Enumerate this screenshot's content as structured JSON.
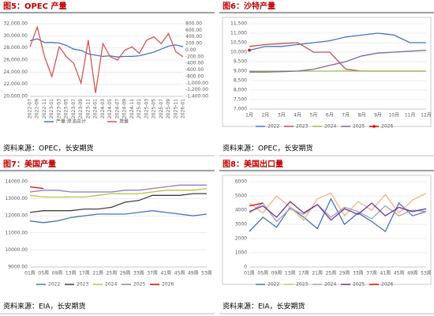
{
  "chart_data": [
    {
      "type": "line",
      "title": "图5：OPEC 产量",
      "source": "资料来源：OPEC，长安期货",
      "categories": [
        "2022-07",
        "2022-09",
        "2022-11",
        "2023-01",
        "2023-03",
        "2023-05",
        "2023-07",
        "2023-09",
        "2023-11",
        "2024-01",
        "2024-03",
        "2024-05",
        "2024-07",
        "2024-09",
        "2024-11",
        "2025-01",
        "2025-03",
        "2025-05",
        "2025-07",
        "2025-09",
        "2025-11",
        "2026-01"
      ],
      "ylim": [
        20000,
        32000
      ],
      "yticks": [
        {
          "value": 20000,
          "label": "20,000.00"
        },
        {
          "value": 22000,
          "label": "22,000.00"
        },
        {
          "value": 24000,
          "label": "24,000.00"
        },
        {
          "value": 26000,
          "label": "26,000.00"
        },
        {
          "value": 28000,
          "label": "28,000.00"
        },
        {
          "value": 30000,
          "label": "30,000.00"
        },
        {
          "value": 32000,
          "label": "32,000.00"
        }
      ],
      "y2lim": [
        -1400,
        800
      ],
      "y2ticks": [
        {
          "value": -1400,
          "label": "-1,400.00"
        },
        {
          "value": -1200,
          "label": "-1,200.00"
        },
        {
          "value": -1000,
          "label": "-1,000.00"
        },
        {
          "value": -800,
          "label": "-800.00"
        },
        {
          "value": -600,
          "label": "-600.00"
        },
        {
          "value": -400,
          "label": "-400.00"
        },
        {
          "value": -200,
          "label": "-200.00"
        },
        {
          "value": 0,
          "label": "0.00"
        },
        {
          "value": 200,
          "label": "200.00"
        },
        {
          "value": 400,
          "label": "400.00"
        },
        {
          "value": 600,
          "label": "600.00"
        },
        {
          "value": 800,
          "label": "800.00"
        }
      ],
      "series": [
        {
          "name": "产量:原油总计",
          "color": "#4472c4",
          "values": [
            29200,
            29500,
            28900,
            28900,
            28800,
            28400,
            27800,
            27600,
            27000,
            26800,
            26600,
            26700,
            26500,
            26600,
            26600,
            26700,
            27000,
            27300,
            27800,
            28300,
            28500,
            28200
          ]
        },
        {
          "name": "增量",
          "color": "#d9534f",
          "axis": "y2",
          "values": [
            100,
            700,
            -200,
            -800,
            100,
            -200,
            -400,
            -1000,
            300,
            -1300,
            200,
            -200,
            -300,
            0,
            100,
            -100,
            300,
            400,
            200,
            500,
            -50,
            -200
          ]
        }
      ]
    },
    {
      "type": "line",
      "title": "图6：沙特产量",
      "source": "资料来源：OPEC，长安期货",
      "categories": [
        "1月",
        "2月",
        "3月",
        "4月",
        "5月",
        "6月",
        "7月",
        "8月",
        "9月",
        "10月",
        "11月",
        "12月"
      ],
      "ylim": [
        7000,
        11500
      ],
      "yticks": [
        {
          "value": 7000,
          "label": "7,000"
        },
        {
          "value": 7500,
          "label": "7,500"
        },
        {
          "value": 8000,
          "label": "8,000"
        },
        {
          "value": 8500,
          "label": "8,500"
        },
        {
          "value": 9000,
          "label": "9,000"
        },
        {
          "value": 9500,
          "label": "9,500"
        },
        {
          "value": 10000,
          "label": "10,000"
        },
        {
          "value": 10500,
          "label": "10,500"
        },
        {
          "value": 11000,
          "label": "11,000"
        },
        {
          "value": 11500,
          "label": "11,500"
        }
      ],
      "frame": true,
      "series": [
        {
          "name": "2022",
          "color": "#4472c4",
          "values": [
            10100,
            10300,
            10300,
            10400,
            10500,
            10600,
            10800,
            10900,
            11000,
            10900,
            10500,
            10500
          ]
        },
        {
          "name": "2023",
          "color": "#c0504d",
          "values": [
            10300,
            10400,
            10450,
            10500,
            10000,
            10000,
            9100,
            9000,
            9000,
            9000,
            9000,
            9000
          ]
        },
        {
          "name": "2024",
          "color": "#9bbb59",
          "values": [
            9000,
            9000,
            9000,
            9000,
            9000,
            9000,
            9000,
            9000,
            9000,
            9000,
            9000,
            9000
          ]
        },
        {
          "name": "2025",
          "color": "#8064a2",
          "values": [
            8950,
            8950,
            8970,
            9000,
            9100,
            9300,
            9500,
            9800,
            9950,
            10000,
            10050,
            10100
          ]
        },
        {
          "name": "2026",
          "color": "#e00000",
          "marker": true,
          "values": [
            10100,
            null,
            null,
            null,
            null,
            null,
            null,
            null,
            null,
            null,
            null,
            null
          ]
        }
      ]
    },
    {
      "type": "line",
      "title": "图7：美国产量",
      "source": "资料来源：EIA，长安期货",
      "categories": [
        "01周",
        "05周",
        "09周",
        "13周",
        "17周",
        "21周",
        "25周",
        "29周",
        "33周",
        "37周",
        "41周",
        "45周",
        "49周",
        "53周"
      ],
      "ylim": [
        9000,
        14000
      ],
      "yticks": [
        {
          "value": 9000,
          "label": "9000.00"
        },
        {
          "value": 10000,
          "label": "10000.00"
        },
        {
          "value": 11000,
          "label": "11000.00"
        },
        {
          "value": 12000,
          "label": "12000.00"
        },
        {
          "value": 13000,
          "label": "13000.00"
        },
        {
          "value": 14000,
          "label": "14000.00"
        }
      ],
      "series": [
        {
          "name": "2022",
          "color": "#4472c4",
          "values": [
            11700,
            11600,
            11700,
            11900,
            12000,
            12100,
            12100,
            12100,
            12200,
            12300,
            12200,
            12100,
            12000,
            12100
          ]
        },
        {
          "name": "2023",
          "color": "#404040",
          "values": [
            12200,
            12300,
            12300,
            12300,
            12400,
            12400,
            12500,
            12800,
            12900,
            13200,
            13200,
            13200,
            13300,
            13300
          ]
        },
        {
          "name": "2024",
          "color": "#bfbf3f",
          "values": [
            13200,
            13100,
            13100,
            13100,
            13100,
            13200,
            13300,
            13300,
            13300,
            13400,
            13500,
            13500,
            13500,
            13600
          ]
        },
        {
          "name": "2025",
          "color": "#8e7cc3",
          "values": [
            13400,
            13500,
            13500,
            13400,
            13400,
            13400,
            13400,
            13500,
            13500,
            13600,
            13700,
            13800,
            13800,
            13800
          ]
        },
        {
          "name": "2026",
          "color": "#e00000",
          "values": [
            13700,
            13600,
            null,
            null,
            null,
            null,
            null,
            null,
            null,
            null,
            null,
            null,
            null,
            null
          ]
        }
      ]
    },
    {
      "type": "line",
      "title": "图8：美国出口量",
      "source": "资料来源：EIA，长安期货",
      "categories": [
        "01周",
        "05周",
        "09周",
        "13周",
        "17周",
        "21周",
        "25周",
        "29周",
        "33周",
        "37周",
        "41周",
        "45周",
        "49周",
        "53周"
      ],
      "ylim": [
        0,
        6000
      ],
      "yticks": [
        0,
        1000,
        2000,
        3000,
        4000,
        5000,
        6000
      ],
      "frame": true,
      "series": [
        {
          "name": "2022",
          "color": "#4472c4",
          "values": [
            2500,
            3500,
            2800,
            4200,
            3500,
            2700,
            4800,
            3000,
            3800,
            3200,
            2500,
            4500,
            3600,
            3900
          ]
        },
        {
          "name": "2023",
          "color": "#f4b183",
          "values": [
            4500,
            3800,
            5000,
            4200,
            3300,
            4800,
            5200,
            3600,
            4600,
            4000,
            5100,
            3800,
            4700,
            5200
          ]
        },
        {
          "name": "2024",
          "color": "#a5a5a5",
          "values": [
            3800,
            4500,
            3200,
            4100,
            3700,
            4400,
            3500,
            4200,
            3900,
            3400,
            4300,
            3600,
            4000,
            3900
          ]
        },
        {
          "name": "2025",
          "color": "#7030a0",
          "values": [
            3900,
            4300,
            3500,
            4600,
            3800,
            4400,
            3300,
            4100,
            3700,
            4500,
            3600,
            4200,
            3900,
            4100
          ]
        },
        {
          "name": "2026",
          "color": "#e00000",
          "values": [
            4300,
            4500,
            null,
            null,
            null,
            null,
            null,
            null,
            null,
            null,
            null,
            null,
            null,
            null
          ]
        }
      ]
    }
  ]
}
